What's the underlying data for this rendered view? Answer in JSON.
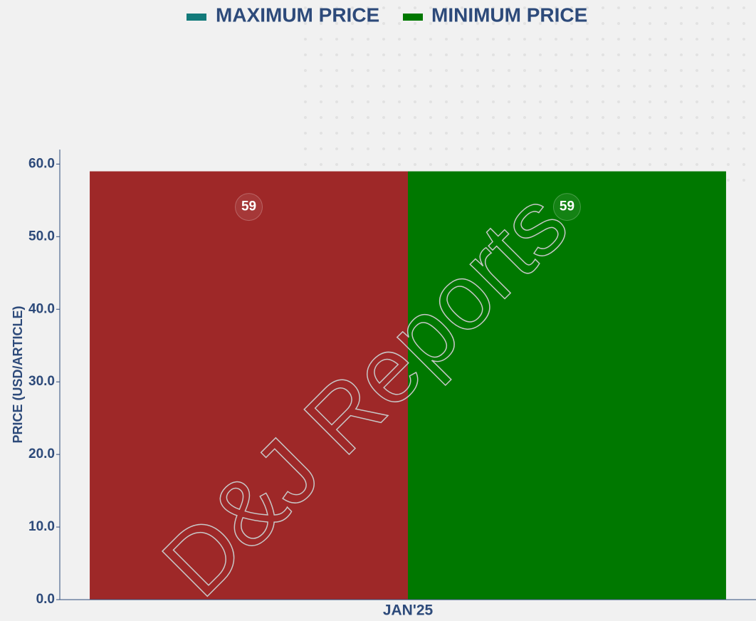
{
  "chart_data": {
    "type": "bar",
    "watermark": "D&J Reports",
    "ylabel": "PRICE (USD/ARTICLE)",
    "categories": [
      "JAN'25"
    ],
    "series": [
      {
        "name": "MAXIMUM PRICE",
        "color": "#9e2828",
        "legend_color": "#137a7a",
        "values": [
          59
        ]
      },
      {
        "name": "MINIMUM PRICE",
        "color": "#007800",
        "legend_color": "#007800",
        "values": [
          59
        ]
      }
    ],
    "ylim": [
      0,
      62
    ],
    "yticks": [
      {
        "value": 0,
        "label": "0.0"
      },
      {
        "value": 10,
        "label": "10.0"
      },
      {
        "value": 20,
        "label": "20.0"
      },
      {
        "value": 30,
        "label": "30.0"
      },
      {
        "value": 40,
        "label": "40.0"
      },
      {
        "value": 50,
        "label": "50.0"
      },
      {
        "value": 60,
        "label": "60.0"
      }
    ],
    "grid": false,
    "legend": "top"
  }
}
